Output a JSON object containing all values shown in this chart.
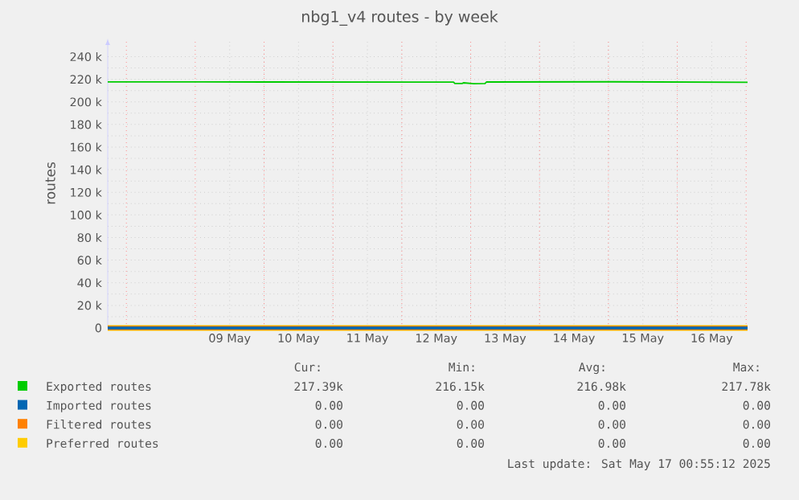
{
  "chart_data": {
    "type": "line",
    "title": "nbg1_v4 routes - by week",
    "ylabel": "routes",
    "xlim": [
      "2025-05-07T17:30",
      "2025-05-17T00:30"
    ],
    "xticks": [
      {
        "value": "2025-05-08T00:00",
        "label": null
      },
      {
        "value": "2025-05-09T00:00",
        "label": null
      },
      {
        "value": "2025-05-10T00:00",
        "label": null
      },
      {
        "value": "2025-05-11T00:00",
        "label": null
      },
      {
        "value": "2025-05-12T00:00",
        "label": null
      },
      {
        "value": "2025-05-13T00:00",
        "label": null
      },
      {
        "value": "2025-05-14T00:00",
        "label": null
      },
      {
        "value": "2025-05-15T00:00",
        "label": null
      },
      {
        "value": "2025-05-16T00:00",
        "label": null
      },
      {
        "value": "2025-05-17T00:00",
        "label": null
      },
      {
        "value": "2025-05-09T12:00",
        "label": "09 May"
      },
      {
        "value": "2025-05-10T12:00",
        "label": "10 May"
      },
      {
        "value": "2025-05-11T12:00",
        "label": "11 May"
      },
      {
        "value": "2025-05-12T12:00",
        "label": "12 May"
      },
      {
        "value": "2025-05-13T12:00",
        "label": "13 May"
      },
      {
        "value": "2025-05-14T12:00",
        "label": "14 May"
      },
      {
        "value": "2025-05-15T12:00",
        "label": "15 May"
      },
      {
        "value": "2025-05-16T12:00",
        "label": "16 May"
      }
    ],
    "ylim": [
      0,
      256000
    ],
    "yticks": [
      0,
      {
        "value": 20000,
        "label": "20 k"
      },
      {
        "value": 40000,
        "label": "40 k"
      },
      {
        "value": 60000,
        "label": "60 k"
      },
      {
        "value": 80000,
        "label": "80 k"
      },
      {
        "value": 100000,
        "label": "100 k"
      },
      {
        "value": 120000,
        "label": "120 k"
      },
      {
        "value": 140000,
        "label": "140 k"
      },
      {
        "value": 160000,
        "label": "160 k"
      },
      {
        "value": 180000,
        "label": "180 k"
      },
      {
        "value": 200000,
        "label": "200 k"
      },
      {
        "value": 220000,
        "label": "220 k"
      },
      {
        "value": 240000,
        "label": "240 k"
      }
    ],
    "grid": true,
    "legend": "bottom",
    "marker": "none",
    "line_style": "solid",
    "series": [
      {
        "name": "Exported routes",
        "color": "#00cc00",
        "x": [
          "2025-05-07T17:30",
          "2025-05-10T00:00",
          "2025-05-12T18:00",
          "2025-05-12T18:30",
          "2025-05-12T21:00",
          "2025-05-12T21:30",
          "2025-05-13T01:00",
          "2025-05-13T05:00",
          "2025-05-13T05:30",
          "2025-05-15T00:00",
          "2025-05-17T00:30"
        ],
        "values": [
          217700,
          217600,
          217500,
          216200,
          216300,
          216900,
          216150,
          216200,
          217600,
          217780,
          217390
        ]
      },
      {
        "name": "Imported routes",
        "color": "#0066b3",
        "x": [
          "2025-05-07T17:30",
          "2025-05-17T00:30"
        ],
        "values": [
          0,
          0
        ]
      },
      {
        "name": "Filtered routes",
        "color": "#ff8000",
        "x": [
          "2025-05-07T17:30",
          "2025-05-17T00:30"
        ],
        "values": [
          0,
          0
        ]
      },
      {
        "name": "Preferred routes",
        "color": "#ffcc00",
        "x": [
          "2025-05-07T17:30",
          "2025-05-17T00:30"
        ],
        "values": [
          0,
          0
        ]
      }
    ],
    "annotations": [
      "Cur:",
      "Min:",
      "Avg:",
      "Max:",
      "217.39k",
      "216.15k",
      "216.98k",
      "217.78k",
      "0.00",
      "0.00",
      "0.00",
      "0.00",
      "0.00",
      "0.00",
      "0.00",
      "0.00",
      "0.00",
      "0.00",
      "0.00",
      "0.00",
      "Last update: Sat May 17 00:55:12 2025"
    ]
  }
}
